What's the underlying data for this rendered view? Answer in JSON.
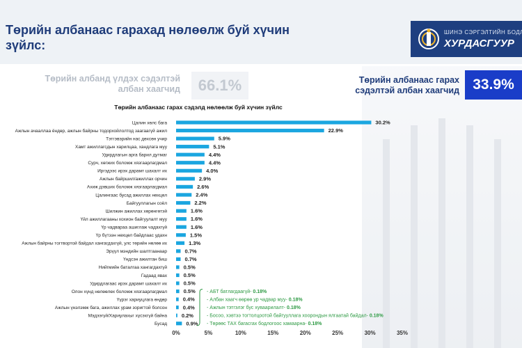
{
  "header": {
    "title": "Төрийн албанаас гарахад нөлөөлж буй хүчин зүйлс:",
    "logo_top": "ШИНЭ СЭРГЭЛТИЙН БОДЛОГО",
    "logo_main": "ХУРДАСГУУР"
  },
  "stats": {
    "left_label": "Төрийн албанд үлдэх сэдэлтэй албан хаагчид",
    "left_value": "66.1%",
    "right_label": "Төрийн албанаас гарах сэдэлтэй албан хаагчид",
    "right_value": "33.9%"
  },
  "colors": {
    "bar": "#1ba6e0",
    "accent": "#1a3dc8",
    "title": "#1f3c7a",
    "note": "#2e9a44"
  },
  "chart_data": {
    "type": "bar",
    "orientation": "horizontal",
    "title": "Төрийн албанаас гарах сэдэлд нөлөөлж буй хүчин зүйлс",
    "xlim": [
      0,
      35
    ],
    "xticks": [
      "0%",
      "5%",
      "10%",
      "15%",
      "20%",
      "25%",
      "30%",
      "35%"
    ],
    "categories": [
      "Цалин хөлс бага",
      "Ажлын ачааллаа ёндөр, ажлын байрны тодорхойлолтод заагаагүй ажил",
      "Тэтгэвэрийн нас дөхсөн учир",
      "Хамт ажиллагсдын харилцаа, хандлага муу",
      "Удирдлагын арга барил дутмаг",
      "Сурч, хөгжих боломж хязгаарлагдмал",
      "Иргэдээс ирэх дарамт шахалт их",
      "Ажлын байршил/ажиллах орчин",
      "Ахиж дэвших боломж хязгаарлагдмал",
      "Цалингаас бусад ажиллах нөхцөл",
      "Байгууллагын соёл",
      "Шилжин ажиллах хөрөнгөтэй",
      "Үйл ажиллагааны хохион байгуулалт муу",
      "Үр чадвараа ашиглаж чадахгүй",
      "Үр бүтээн нөхцөл байдлаас удахн",
      "Ажлын байрны тогтвортой байдал хангагдахгүй, улс төрийн нөлөө их",
      "Эрүүл мэндийн шалтгаанаар",
      "Үндсэн ажилтан биш",
      "Нийгмийн баталгаа хангагдахгүй",
      "Гадаад явах",
      "Удирдлагаас ирэх дарамт шахалт их",
      "Олон хүнд нөлөөлөх боломж хязгаарлагдмал",
      "Үүрэг хариуцлага өндөр",
      "Ажлын үнэлэмж бага, ажиллах урам зоригтой болсон",
      "Мэдээгүй/Хариулахыг хүсэхгүй байна",
      "Бусад"
    ],
    "values": [
      30.2,
      22.9,
      5.9,
      5.1,
      4.4,
      4.4,
      4.0,
      2.9,
      2.6,
      2.4,
      2.2,
      1.6,
      1.6,
      1.6,
      1.5,
      1.3,
      0.7,
      0.7,
      0.5,
      0.5,
      0.5,
      0.5,
      0.4,
      0.4,
      0.2,
      0.9
    ],
    "value_labels": [
      "30.2%",
      "22.9%",
      "5.9%",
      "5.1%",
      "4.4%",
      "4.4%",
      "4.0%",
      "2.9%",
      "2.6%",
      "2.4%",
      "2.2%",
      "1.6%",
      "1.6%",
      "1.6%",
      "1.5%",
      "1.3%",
      "0.7%",
      "0.7%",
      "0.5%",
      "0.5%",
      "0.5%",
      "0.5%",
      "0.4%",
      "0.4%",
      "0.2%",
      "0.9%"
    ],
    "annotations": [
      {
        "text": "- АБТ батлагдаагүй- ",
        "value": "0.18%"
      },
      {
        "text": "- Албан хаагч өөрөө ур чадвар муу- ",
        "value": "0.18%"
      },
      {
        "text": "- Ажлын тэтгэлэг бус хуваарилалт- ",
        "value": "0.18%"
      },
      {
        "text": "- Босоо, хэвтээ тогтолцоотой байгууллага хоорондын ялгаатай байдал- ",
        "value": "0.18%"
      },
      {
        "text": "- Төрөөс ТАХ багасгах бодлогоос хамаарна- ",
        "value": "0.18%"
      }
    ]
  }
}
